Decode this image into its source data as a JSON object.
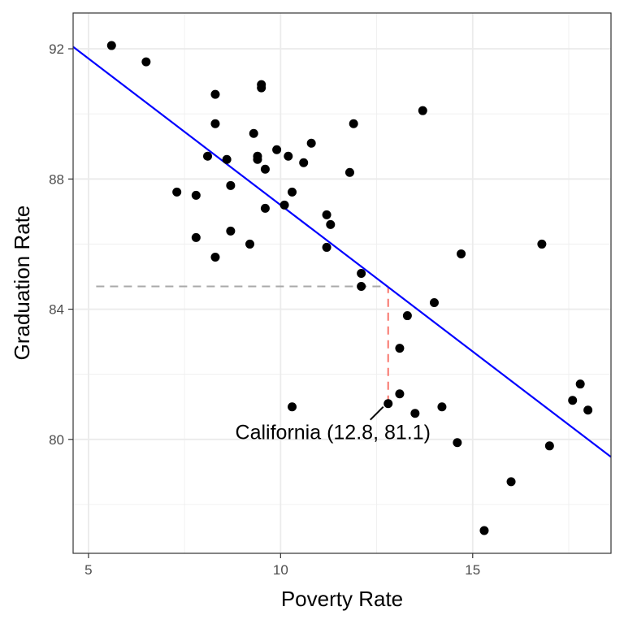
{
  "chart_data": {
    "type": "scatter",
    "title": "",
    "xlabel": "Poverty Rate",
    "ylabel": "Graduation Rate",
    "xlim": [
      4.6,
      18.6
    ],
    "ylim": [
      76.5,
      93.1
    ],
    "x_ticks": [
      5,
      10,
      15
    ],
    "y_ticks": [
      80,
      84,
      88,
      92
    ],
    "x_tick_labels": [
      "5",
      "10",
      "15"
    ],
    "y_tick_labels": [
      "80",
      "84",
      "88",
      "92"
    ],
    "grid": true,
    "legend": "none",
    "point_color": "#000000",
    "points": [
      {
        "x": 5.6,
        "y": 92.1
      },
      {
        "x": 6.5,
        "y": 91.6
      },
      {
        "x": 7.3,
        "y": 87.6
      },
      {
        "x": 7.8,
        "y": 87.5
      },
      {
        "x": 7.8,
        "y": 86.2
      },
      {
        "x": 8.1,
        "y": 88.7
      },
      {
        "x": 8.3,
        "y": 90.6
      },
      {
        "x": 8.3,
        "y": 89.7
      },
      {
        "x": 8.3,
        "y": 85.6
      },
      {
        "x": 8.6,
        "y": 88.6
      },
      {
        "x": 8.7,
        "y": 87.8
      },
      {
        "x": 8.7,
        "y": 86.4
      },
      {
        "x": 9.2,
        "y": 86.0
      },
      {
        "x": 9.3,
        "y": 89.4
      },
      {
        "x": 9.4,
        "y": 88.7
      },
      {
        "x": 9.4,
        "y": 88.6
      },
      {
        "x": 9.5,
        "y": 90.9
      },
      {
        "x": 9.5,
        "y": 90.8
      },
      {
        "x": 9.6,
        "y": 88.3
      },
      {
        "x": 9.6,
        "y": 87.1
      },
      {
        "x": 9.9,
        "y": 88.9
      },
      {
        "x": 10.1,
        "y": 87.2
      },
      {
        "x": 10.2,
        "y": 88.7
      },
      {
        "x": 10.3,
        "y": 87.6
      },
      {
        "x": 10.3,
        "y": 81.0
      },
      {
        "x": 10.6,
        "y": 88.5
      },
      {
        "x": 10.8,
        "y": 89.1
      },
      {
        "x": 11.2,
        "y": 86.9
      },
      {
        "x": 11.2,
        "y": 85.9
      },
      {
        "x": 11.3,
        "y": 86.6
      },
      {
        "x": 11.8,
        "y": 88.2
      },
      {
        "x": 11.9,
        "y": 89.7
      },
      {
        "x": 12.1,
        "y": 85.1
      },
      {
        "x": 12.1,
        "y": 84.7
      },
      {
        "x": 12.8,
        "y": 81.1
      },
      {
        "x": 13.1,
        "y": 82.8
      },
      {
        "x": 13.1,
        "y": 81.4
      },
      {
        "x": 13.3,
        "y": 83.8
      },
      {
        "x": 13.5,
        "y": 80.8
      },
      {
        "x": 13.7,
        "y": 90.1
      },
      {
        "x": 14.0,
        "y": 84.2
      },
      {
        "x": 14.2,
        "y": 81.0
      },
      {
        "x": 14.6,
        "y": 79.9
      },
      {
        "x": 14.7,
        "y": 85.7
      },
      {
        "x": 15.3,
        "y": 77.2
      },
      {
        "x": 16.0,
        "y": 78.7
      },
      {
        "x": 16.8,
        "y": 86.0
      },
      {
        "x": 17.0,
        "y": 79.8
      },
      {
        "x": 17.6,
        "y": 81.2
      },
      {
        "x": 17.8,
        "y": 81.7
      },
      {
        "x": 18.0,
        "y": 80.9
      }
    ],
    "regression_line": {
      "color": "#0000ff",
      "intercept": 96.2,
      "slope": -0.9
    },
    "reference_lines": {
      "horizontal": {
        "y": 84.7,
        "x_start": 5.2,
        "x_end": 12.8,
        "color": "#aaaaaa"
      },
      "vertical": {
        "x": 12.8,
        "y_start": 81.1,
        "y_end": 84.7,
        "color": "#f8766d"
      }
    },
    "annotation": {
      "text": "California (12.8, 81.1)",
      "x": 12.8,
      "y": 81.1
    }
  }
}
